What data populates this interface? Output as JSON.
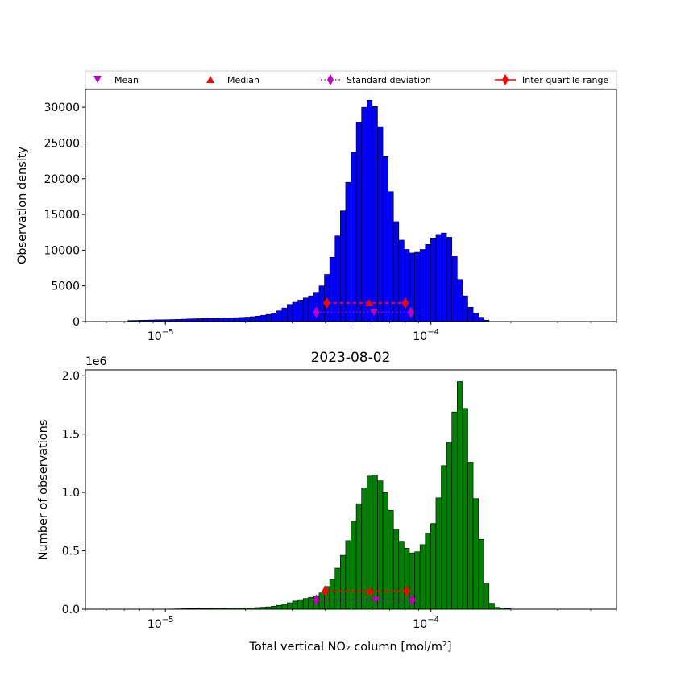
{
  "chart_data": [
    {
      "type": "bar",
      "title": "",
      "xlabel": "",
      "ylabel": "Observation density",
      "xscale": "log",
      "xlim": [
        5e-06,
        0.0005
      ],
      "ylim": [
        0,
        32500
      ],
      "xticks": [
        {
          "value": 1e-05,
          "base": "10",
          "exp": "−5"
        },
        {
          "value": 0.0001,
          "base": "10",
          "exp": "−4"
        }
      ],
      "yticks": [
        0,
        5000,
        10000,
        15000,
        20000,
        25000,
        30000
      ],
      "ytick_labels": [
        "0",
        "5000",
        "10000",
        "15000",
        "20000",
        "25000",
        "30000"
      ],
      "offset_text": "",
      "bar_color": "#0000ff",
      "bins": {
        "min": 5e-06,
        "max": 0.0005,
        "count": 100
      },
      "values": [
        0,
        0,
        0,
        0,
        0,
        0,
        0,
        0,
        150,
        160,
        180,
        200,
        220,
        240,
        250,
        260,
        280,
        300,
        330,
        360,
        380,
        400,
        420,
        440,
        460,
        480,
        500,
        520,
        550,
        580,
        620,
        680,
        760,
        860,
        1000,
        1200,
        1500,
        1900,
        2400,
        2700,
        3000,
        3300,
        3600,
        4100,
        5000,
        6600,
        9000,
        12000,
        15500,
        19500,
        23700,
        27900,
        30000,
        31000,
        30100,
        27300,
        23100,
        18200,
        14000,
        11400,
        10100,
        9600,
        9700,
        10100,
        10800,
        11700,
        12200,
        12400,
        11800,
        9100,
        5900,
        3600,
        2000,
        1200,
        600,
        200,
        0,
        0,
        0,
        0,
        0,
        0,
        0,
        0,
        0,
        0,
        0,
        0,
        0,
        0,
        0,
        0,
        0,
        0,
        0,
        0,
        0,
        0,
        0,
        0
      ],
      "markers": {
        "mean": {
          "x": 6.1e-05,
          "y": 1300
        },
        "median": {
          "x": 5.85e-05,
          "y": 2600
        },
        "std": {
          "x": [
            3.7e-05,
            8.4e-05
          ],
          "y": 1300
        },
        "iqr": {
          "x": [
            4.05e-05,
            8e-05
          ],
          "y": 2600
        }
      }
    },
    {
      "type": "bar",
      "title": "2023-08-02",
      "xlabel": "Total vertical NO₂ column [mol/m²]",
      "ylabel": "Number of observations",
      "xscale": "log",
      "xlim": [
        5e-06,
        0.0005
      ],
      "ylim": [
        0,
        2050000
      ],
      "xticks": [
        {
          "value": 1e-05,
          "base": "10",
          "exp": "−5"
        },
        {
          "value": 0.0001,
          "base": "10",
          "exp": "−4"
        }
      ],
      "yticks": [
        0,
        500000,
        1000000,
        1500000,
        2000000
      ],
      "ytick_labels": [
        "0.0",
        "0.5",
        "1.0",
        "1.5",
        "2.0"
      ],
      "offset_text": "1e6",
      "bar_color": "#008000",
      "bins": {
        "min": 5e-06,
        "max": 0.0005,
        "count": 100
      },
      "values": [
        0,
        0,
        0,
        0,
        0,
        0,
        0,
        0,
        0,
        0,
        0,
        0,
        0,
        0,
        0,
        0,
        2000,
        3000,
        4000,
        5000,
        5000,
        6000,
        6000,
        7000,
        7000,
        7000,
        8000,
        8000,
        9000,
        10000,
        11000,
        12000,
        14000,
        17000,
        20000,
        26000,
        33000,
        42000,
        55000,
        70000,
        82000,
        92000,
        102000,
        115000,
        140000,
        195000,
        256000,
        352000,
        462000,
        588000,
        754000,
        903000,
        1040000,
        1140000,
        1150000,
        1100000,
        1000000,
        847000,
        685000,
        582000,
        522000,
        482000,
        492000,
        553000,
        651000,
        734000,
        954000,
        1230000,
        1430000,
        1690000,
        1950000,
        1720000,
        1260000,
        948000,
        599000,
        223000,
        51000,
        16000,
        11000,
        5000,
        1000,
        0,
        0,
        0,
        0,
        0,
        0,
        0,
        0,
        0,
        0,
        0,
        0,
        0,
        0,
        0,
        0,
        0,
        0,
        0
      ],
      "markers": {
        "mean": {
          "x": 6.2e-05,
          "y": 80000
        },
        "median": {
          "x": 5.9e-05,
          "y": 155000
        },
        "std": {
          "x": [
            3.7e-05,
            8.5e-05
          ],
          "y": 80000
        },
        "iqr": {
          "x": [
            4e-05,
            8.1e-05
          ],
          "y": 155000
        }
      }
    }
  ],
  "legend": {
    "placement": "top",
    "entries": [
      {
        "label": "Mean",
        "marker": "triangle-down",
        "color": "#bf00bf"
      },
      {
        "label": "Median",
        "marker": "triangle-up",
        "color": "#ff0000"
      },
      {
        "label": "Standard deviation",
        "marker": "diamond-dotted",
        "color": "#bf00bf"
      },
      {
        "label": "Inter quartile range",
        "marker": "diamond-line",
        "color": "#ff0000"
      }
    ]
  },
  "colors": {
    "mean": "#bf00bf",
    "median": "#ff0000",
    "std": "#bf00bf",
    "iqr": "#ff0000"
  }
}
